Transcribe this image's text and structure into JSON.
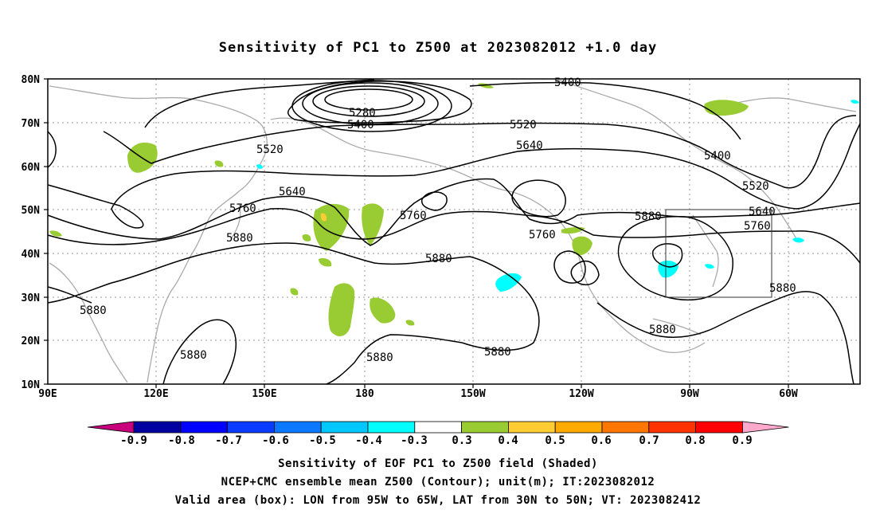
{
  "title": "Sensitivity of PC1 to Z500 at 2023082012 +1.0 day",
  "map": {
    "lat_labels": [
      "80N",
      "70N",
      "60N",
      "50N",
      "40N",
      "30N",
      "20N",
      "10N"
    ],
    "lon_labels": [
      "90E",
      "120E",
      "150E",
      "180",
      "150W",
      "120W",
      "90W",
      "60W"
    ],
    "contour_labels": [
      "5400",
      "5280",
      "5400",
      "5520",
      "5520",
      "5640",
      "5640",
      "5760",
      "5760",
      "5760",
      "5880",
      "5880",
      "5880",
      "5880",
      "5880",
      "5880",
      "5880",
      "5400",
      "5520",
      "5640",
      "5760",
      "5880"
    ],
    "valid_box": {
      "lon_from": "95W",
      "lon_to": "65W",
      "lat_from": "30N",
      "lat_to": "50N"
    }
  },
  "colorbar": {
    "labels": [
      "-0.9",
      "-0.8",
      "-0.7",
      "-0.6",
      "-0.5",
      "-0.4",
      "-0.3",
      "0.3",
      "0.4",
      "0.5",
      "0.6",
      "0.7",
      "0.8",
      "0.9"
    ],
    "colors": [
      "#c8007c",
      "#0000a0",
      "#0000ff",
      "#0a3cff",
      "#0a78ff",
      "#00c8ff",
      "#00ffff",
      "#ffffff",
      "#99cc33",
      "#ffcc33",
      "#ffaa00",
      "#ff7700",
      "#ff3300",
      "#ff0000",
      "#ffaacc"
    ]
  },
  "captions": {
    "line1": "Sensitivity of EOF PC1 to Z500 field (Shaded)",
    "line2": "NCEP+CMC ensemble mean Z500 (Contour); unit(m); IT:2023082012",
    "line3": "Valid area (box): LON from 95W to 65W, LAT from 30N to 50N; VT: 2023082412"
  }
}
